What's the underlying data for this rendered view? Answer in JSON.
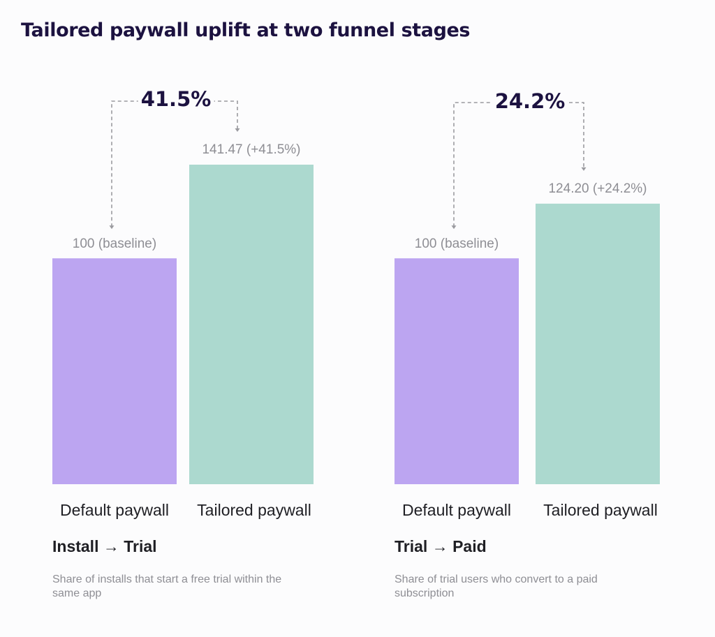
{
  "title": "Tailored paywall uplift at two funnel stages",
  "colors": {
    "default": "#bca5f1",
    "tailored": "#acd9cf",
    "connector": "#9a9a9f"
  },
  "chart_data": [
    {
      "type": "bar",
      "stage": "Install → Trial",
      "description": "Share of installs that start a free trial within the same app",
      "uplift_label": "41.5%",
      "categories": [
        "Default paywall",
        "Tailored paywall"
      ],
      "values": [
        100,
        141.47
      ],
      "value_labels": [
        "100 (baseline)",
        "141.47 (+41.5%)"
      ],
      "ylim": [
        0,
        141.47
      ]
    },
    {
      "type": "bar",
      "stage": "Trial → Paid",
      "description": "Share of trial users who convert to a paid subscription",
      "uplift_label": "24.2%",
      "categories": [
        "Default paywall",
        "Tailored paywall"
      ],
      "values": [
        100,
        124.2
      ],
      "value_labels": [
        "100 (baseline)",
        "124.20 (+24.2%)"
      ],
      "ylim": [
        0,
        141.47
      ]
    }
  ]
}
